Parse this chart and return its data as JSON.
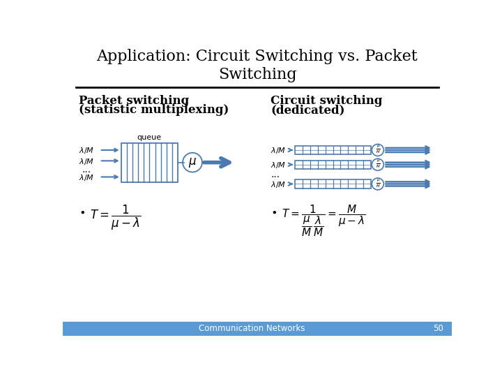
{
  "title": "Application: Circuit Switching vs. Packet\nSwitching",
  "title_fontsize": 16,
  "bg_color": "#ffffff",
  "header_line_color": "#000000",
  "left_header1": "Packet switching",
  "left_header2": "(statistic multiplexing)",
  "right_header1": "Circuit switching",
  "right_header2": "(dedicated)",
  "header_fontsize": 12,
  "blue_color": "#4a7ab0",
  "footer_text": "Communication Networks",
  "footer_number": "50",
  "footer_bg": "#5b9bd5"
}
